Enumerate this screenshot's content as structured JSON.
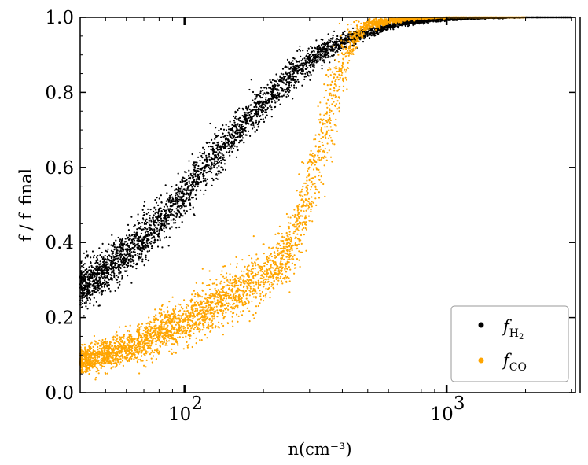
{
  "chart_data": {
    "type": "scatter",
    "xlabel": "n(cm⁻³)",
    "ylabel": "f / f_final",
    "xscale": "log",
    "xlim": [
      40,
      3100
    ],
    "ylim": [
      0.0,
      1.0
    ],
    "x_tick_labels": [
      {
        "value": 100,
        "mantissa": "10",
        "exp": "2"
      },
      {
        "value": 1000,
        "mantissa": "10",
        "exp": "3"
      }
    ],
    "y_ticks": [
      0.0,
      0.2,
      0.4,
      0.6,
      0.8,
      1.0
    ],
    "y_tick_labels": [
      "0.0",
      "0.2",
      "0.4",
      "0.6",
      "0.8",
      "1.0"
    ],
    "legend": {
      "placement": "lower-right"
    },
    "series": [
      {
        "name": "f_H2",
        "legend_main": "f",
        "legend_sub": "H",
        "legend_subsub": "2",
        "color": "#000000",
        "x": [
          40,
          50,
          60,
          70,
          80,
          100,
          120,
          150,
          180,
          220,
          270,
          330,
          400,
          500,
          600,
          700,
          800,
          1000,
          1300,
          2000,
          3000
        ],
        "y_center": [
          0.28,
          0.33,
          0.37,
          0.41,
          0.45,
          0.53,
          0.6,
          0.68,
          0.74,
          0.8,
          0.86,
          0.905,
          0.935,
          0.96,
          0.975,
          0.985,
          0.99,
          0.995,
          0.998,
          1.0,
          1.0
        ],
        "y_spread": [
          0.06,
          0.06,
          0.06,
          0.06,
          0.06,
          0.06,
          0.06,
          0.05,
          0.05,
          0.045,
          0.04,
          0.03,
          0.02,
          0.015,
          0.01,
          0.008,
          0.006,
          0.004,
          0.002,
          0.0,
          0.0
        ]
      },
      {
        "name": "f_CO",
        "legend_main": "f",
        "legend_sub": "CO",
        "color": "#FFA500",
        "x": [
          40,
          50,
          60,
          70,
          80,
          100,
          120,
          150,
          180,
          220,
          260,
          300,
          350,
          400,
          450,
          500,
          600,
          700,
          800,
          1000,
          1300,
          2000
        ],
        "y_center": [
          0.085,
          0.1,
          0.12,
          0.14,
          0.16,
          0.19,
          0.22,
          0.26,
          0.29,
          0.33,
          0.4,
          0.55,
          0.72,
          0.88,
          0.95,
          0.98,
          0.99,
          0.995,
          0.998,
          1.0,
          1.0,
          1.0
        ],
        "y_spread": [
          0.035,
          0.04,
          0.045,
          0.05,
          0.055,
          0.06,
          0.06,
          0.065,
          0.07,
          0.07,
          0.09,
          0.12,
          0.14,
          0.08,
          0.03,
          0.015,
          0.008,
          0.005,
          0.003,
          0.0,
          0.0,
          0.0
        ]
      }
    ]
  }
}
